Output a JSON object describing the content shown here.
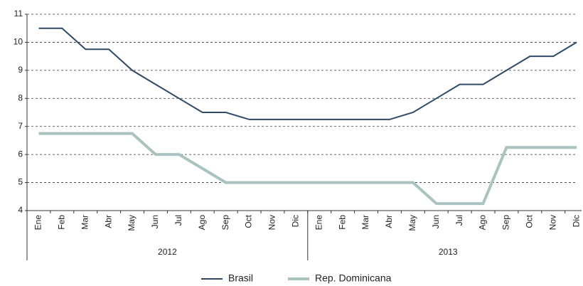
{
  "chart_data": {
    "type": "line",
    "categories": [
      "Ene",
      "Feb",
      "Mar",
      "Abr",
      "May",
      "Jun",
      "Jul",
      "Ago",
      "Sep",
      "Oct",
      "Nov",
      "Dic",
      "Ene",
      "Feb",
      "Mar",
      "Abr",
      "May",
      "Jun",
      "Jul",
      "Ago",
      "Sep",
      "Oct",
      "Nov",
      "Dic"
    ],
    "groups": [
      "2012",
      "2013"
    ],
    "series": [
      {
        "name": "Brasil",
        "color": "#2e4a66",
        "values": [
          10.5,
          10.5,
          9.75,
          9.75,
          9.0,
          8.5,
          8.0,
          7.5,
          7.5,
          7.25,
          7.25,
          7.25,
          7.25,
          7.25,
          7.25,
          7.25,
          7.5,
          8.0,
          8.5,
          8.5,
          9.0,
          9.5,
          9.5,
          10.0
        ]
      },
      {
        "name": "Rep. Dominicana",
        "color": "#a9c4c0",
        "values": [
          6.75,
          6.75,
          6.75,
          6.75,
          6.75,
          6.0,
          6.0,
          5.5,
          5.0,
          5.0,
          5.0,
          5.0,
          5.0,
          5.0,
          5.0,
          5.0,
          5.0,
          4.25,
          4.25,
          4.25,
          6.25,
          6.25,
          6.25,
          6.25
        ]
      }
    ],
    "ylim": [
      4,
      11
    ],
    "yticks": [
      4,
      5,
      6,
      7,
      8,
      9,
      10,
      11
    ],
    "grid": true
  }
}
